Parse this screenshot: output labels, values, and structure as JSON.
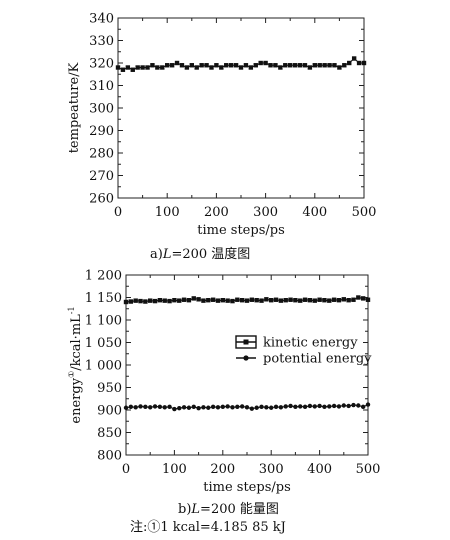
{
  "chart_data": [
    {
      "type": "scatter",
      "xlabel": "time steps/ps",
      "ylabel": "tempeature/K",
      "xlim": [
        0,
        500
      ],
      "ylim": [
        260,
        340
      ],
      "xticks": [
        "0",
        "100",
        "200",
        "300",
        "400",
        "500"
      ],
      "yticks": [
        "260",
        "270",
        "280",
        "290",
        "300",
        "310",
        "320",
        "330",
        "340"
      ],
      "grid": false,
      "caption": {
        "prefix": "a)",
        "var": "L",
        "suffix": "=200 温度图"
      },
      "series": [
        {
          "name": "",
          "marker": "square",
          "x": [
            0,
            10,
            20,
            30,
            40,
            50,
            60,
            70,
            80,
            90,
            100,
            110,
            120,
            130,
            140,
            150,
            160,
            170,
            180,
            190,
            200,
            210,
            220,
            230,
            240,
            250,
            260,
            270,
            280,
            290,
            300,
            310,
            320,
            330,
            340,
            350,
            360,
            370,
            380,
            390,
            400,
            410,
            420,
            430,
            440,
            450,
            460,
            470,
            480,
            490,
            500
          ],
          "values": [
            318,
            317,
            318,
            317,
            318,
            318,
            318,
            319,
            318,
            318,
            319,
            319,
            320,
            319,
            318,
            319,
            318,
            319,
            319,
            318,
            319,
            318,
            319,
            319,
            319,
            318,
            319,
            318,
            319,
            320,
            320,
            319,
            319,
            318,
            319,
            319,
            319,
            319,
            319,
            318,
            319,
            319,
            319,
            319,
            319,
            318,
            319,
            320,
            322,
            320,
            320
          ]
        }
      ]
    },
    {
      "type": "scatter",
      "xlabel": "time steps/ps",
      "ylabel": "energy",
      "ylabel_sup": "①",
      "ylabel_unit": "/kcal·mL",
      "ylabel_unit_sup": "-1",
      "xlim": [
        0,
        500
      ],
      "ylim": [
        800,
        1200
      ],
      "xticks": [
        "0",
        "100",
        "200",
        "300",
        "400",
        "500"
      ],
      "yticks": [
        "800",
        "850",
        "900",
        "950",
        "1 000",
        "1 050",
        "1 100",
        "1 150",
        "1 200"
      ],
      "grid": false,
      "legend_position": "right-middle",
      "caption": {
        "prefix": "b)",
        "var": "L",
        "suffix": "=200 能量图"
      },
      "series": [
        {
          "name": "kinetic energy",
          "marker": "square",
          "x": [
            0,
            10,
            20,
            30,
            40,
            50,
            60,
            70,
            80,
            90,
            100,
            110,
            120,
            130,
            140,
            150,
            160,
            170,
            180,
            190,
            200,
            210,
            220,
            230,
            240,
            250,
            260,
            270,
            280,
            290,
            300,
            310,
            320,
            330,
            340,
            350,
            360,
            370,
            380,
            390,
            400,
            410,
            420,
            430,
            440,
            450,
            460,
            470,
            480,
            490,
            500
          ],
          "values": [
            1140,
            1141,
            1143,
            1142,
            1141,
            1143,
            1142,
            1144,
            1143,
            1142,
            1144,
            1143,
            1145,
            1144,
            1148,
            1146,
            1143,
            1144,
            1145,
            1143,
            1144,
            1143,
            1142,
            1145,
            1144,
            1143,
            1145,
            1144,
            1143,
            1146,
            1144,
            1145,
            1143,
            1144,
            1145,
            1144,
            1143,
            1145,
            1144,
            1143,
            1145,
            1144,
            1143,
            1145,
            1144,
            1146,
            1144,
            1145,
            1150,
            1148,
            1145
          ]
        },
        {
          "name": "potential energy",
          "marker": "circle",
          "x": [
            0,
            10,
            20,
            30,
            40,
            50,
            60,
            70,
            80,
            90,
            100,
            110,
            120,
            130,
            140,
            150,
            160,
            170,
            180,
            190,
            200,
            210,
            220,
            230,
            240,
            250,
            260,
            270,
            280,
            290,
            300,
            310,
            320,
            330,
            340,
            350,
            360,
            370,
            380,
            390,
            400,
            410,
            420,
            430,
            440,
            450,
            460,
            470,
            480,
            490,
            500
          ],
          "values": [
            905,
            907,
            906,
            908,
            907,
            906,
            908,
            907,
            906,
            907,
            902,
            904,
            906,
            905,
            907,
            904,
            906,
            905,
            907,
            906,
            907,
            908,
            906,
            907,
            908,
            906,
            903,
            905,
            907,
            906,
            905,
            907,
            906,
            908,
            909,
            907,
            908,
            907,
            909,
            908,
            909,
            907,
            908,
            909,
            908,
            910,
            909,
            911,
            910,
            907,
            912
          ]
        }
      ]
    }
  ],
  "note": "注:①1 kcal=4.185 85 kJ"
}
